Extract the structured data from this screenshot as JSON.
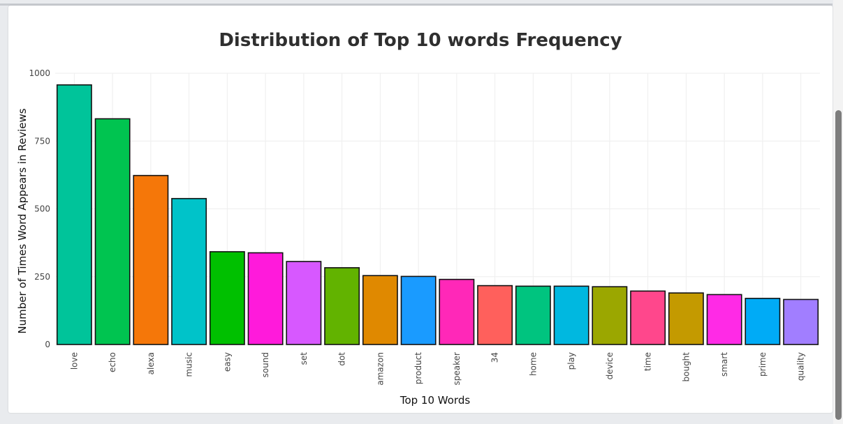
{
  "chart_data": {
    "type": "bar",
    "title": "Distribution of Top 10 words Frequency",
    "xlabel": "Top 10 Words",
    "ylabel": "Number of Times Word Appears in Reviews",
    "ylim": [
      0,
      1000
    ],
    "yticks": [
      "0",
      "250",
      "500",
      "750",
      "1000"
    ],
    "grid": true,
    "categories": [
      "love",
      "echo",
      "alexa",
      "music",
      "easy",
      "sound",
      "set",
      "dot",
      "amazon",
      "product",
      "speaker",
      "34",
      "home",
      "play",
      "device",
      "time",
      "bought",
      "smart",
      "prime",
      "quality"
    ],
    "values": [
      957,
      832,
      623,
      538,
      342,
      338,
      306,
      283,
      254,
      251,
      240,
      217,
      215,
      215,
      213,
      197,
      190,
      184,
      170,
      166
    ],
    "colors": [
      "#00c49a",
      "#00c450",
      "#f57709",
      "#00c3c9",
      "#00c000",
      "#ff1adb",
      "#d758ff",
      "#62b300",
      "#e08900",
      "#1a9bff",
      "#ff28b8",
      "#ff605c",
      "#00c47f",
      "#00b8e0",
      "#9ba700",
      "#ff478c",
      "#c49a00",
      "#ff2ae6",
      "#00abf6",
      "#a17eff"
    ]
  }
}
